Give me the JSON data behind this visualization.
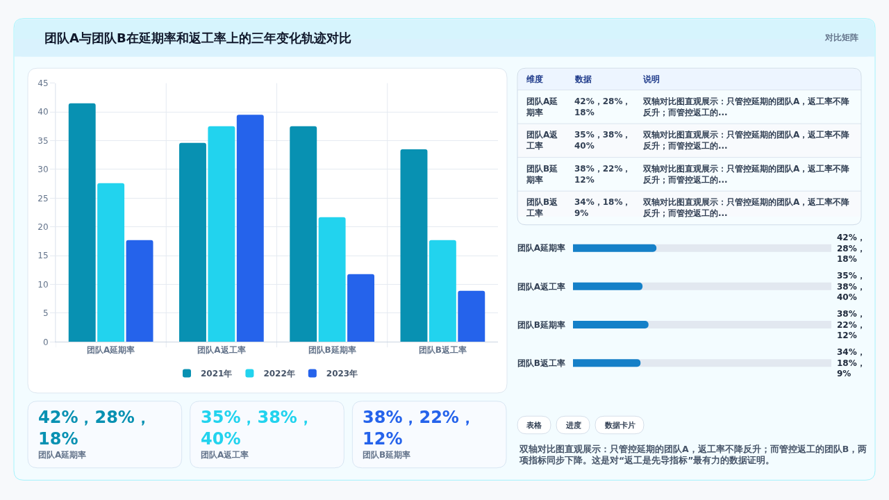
{
  "chart_data": [
    {
      "type": "bar",
      "title": "团队A与团队B在延期率和返工率上的三年变化轨迹对比",
      "categories": [
        "团队A延期率",
        "团队A返工率",
        "团队B延期率",
        "团队B返工率"
      ],
      "series": [
        {
          "name": "2021年",
          "color": "#0891b2",
          "values": [
            41.5,
            34.6,
            37.5,
            33.5
          ]
        },
        {
          "name": "2022年",
          "color": "#22d3ee",
          "values": [
            27.6,
            37.5,
            21.7,
            17.7
          ]
        },
        {
          "name": "2023年",
          "color": "#2563eb",
          "values": [
            17.7,
            39.5,
            11.8,
            8.9
          ]
        }
      ],
      "ylim": [
        0,
        45
      ],
      "yticks": [
        0,
        5,
        10,
        15,
        20,
        25,
        30,
        35,
        40,
        45
      ],
      "grid": true,
      "legend": "bottom"
    },
    {
      "type": "other",
      "title": "对比矩阵",
      "categories": [
        "维度",
        "数据",
        "说明"
      ],
      "annotations": [
        "团队A延期率",
        "42%，28%，18%",
        "双轴对比图直观展示：只管控延期的团队A，返工率不降反升；而管控返工的...",
        "团队A返工率",
        "35%，38%，40%",
        "双轴对比图直观展示：只管控延期的团队A，返工率不降反升；而管控返工的...",
        "团队B延期率",
        "38%，22%，12%",
        "双轴对比图直观展示：只管控延期的团队A，返工率不降反升；而管控返工的...",
        "团队B返工率",
        "34%，18%，9%",
        "双轴对比图直观展示：只管控延期的团队A，返工率不降反升；而管控返工的..."
      ]
    },
    {
      "type": "bar",
      "orientation": "horizontal",
      "categories": [
        "团队A延期率",
        "团队A返工率",
        "团队B延期率",
        "团队B返工率"
      ],
      "series": [
        {
          "color": "#1580c8",
          "values": [
            42,
            35,
            38,
            34
          ],
          "value_labels": [
            "42%，28%，18%",
            "35%，38%，40%",
            "38%，22%，12%",
            "34%，18%，9%"
          ]
        }
      ],
      "xlim": [
        0,
        130
      ],
      "tick_labels": "y"
    },
    {
      "type": "other",
      "categories": [
        "团队A延期率",
        "团队A返工率",
        "团队B延期率"
      ],
      "value_labels": [
        "42%，28%，18%",
        "35%，38%，40%",
        "38%，22%，12%"
      ]
    },
    {
      "type": "other",
      "categories": [
        "表格",
        "进度",
        "数据卡片"
      ],
      "annotations": [
        "双轴对比图直观展示：只管控延期的团队A，返工率不降反升；而管控返工的团队B，两项指标同步下降。这是对“返工是先导指标”最有力的数据证明。"
      ]
    }
  ]
}
